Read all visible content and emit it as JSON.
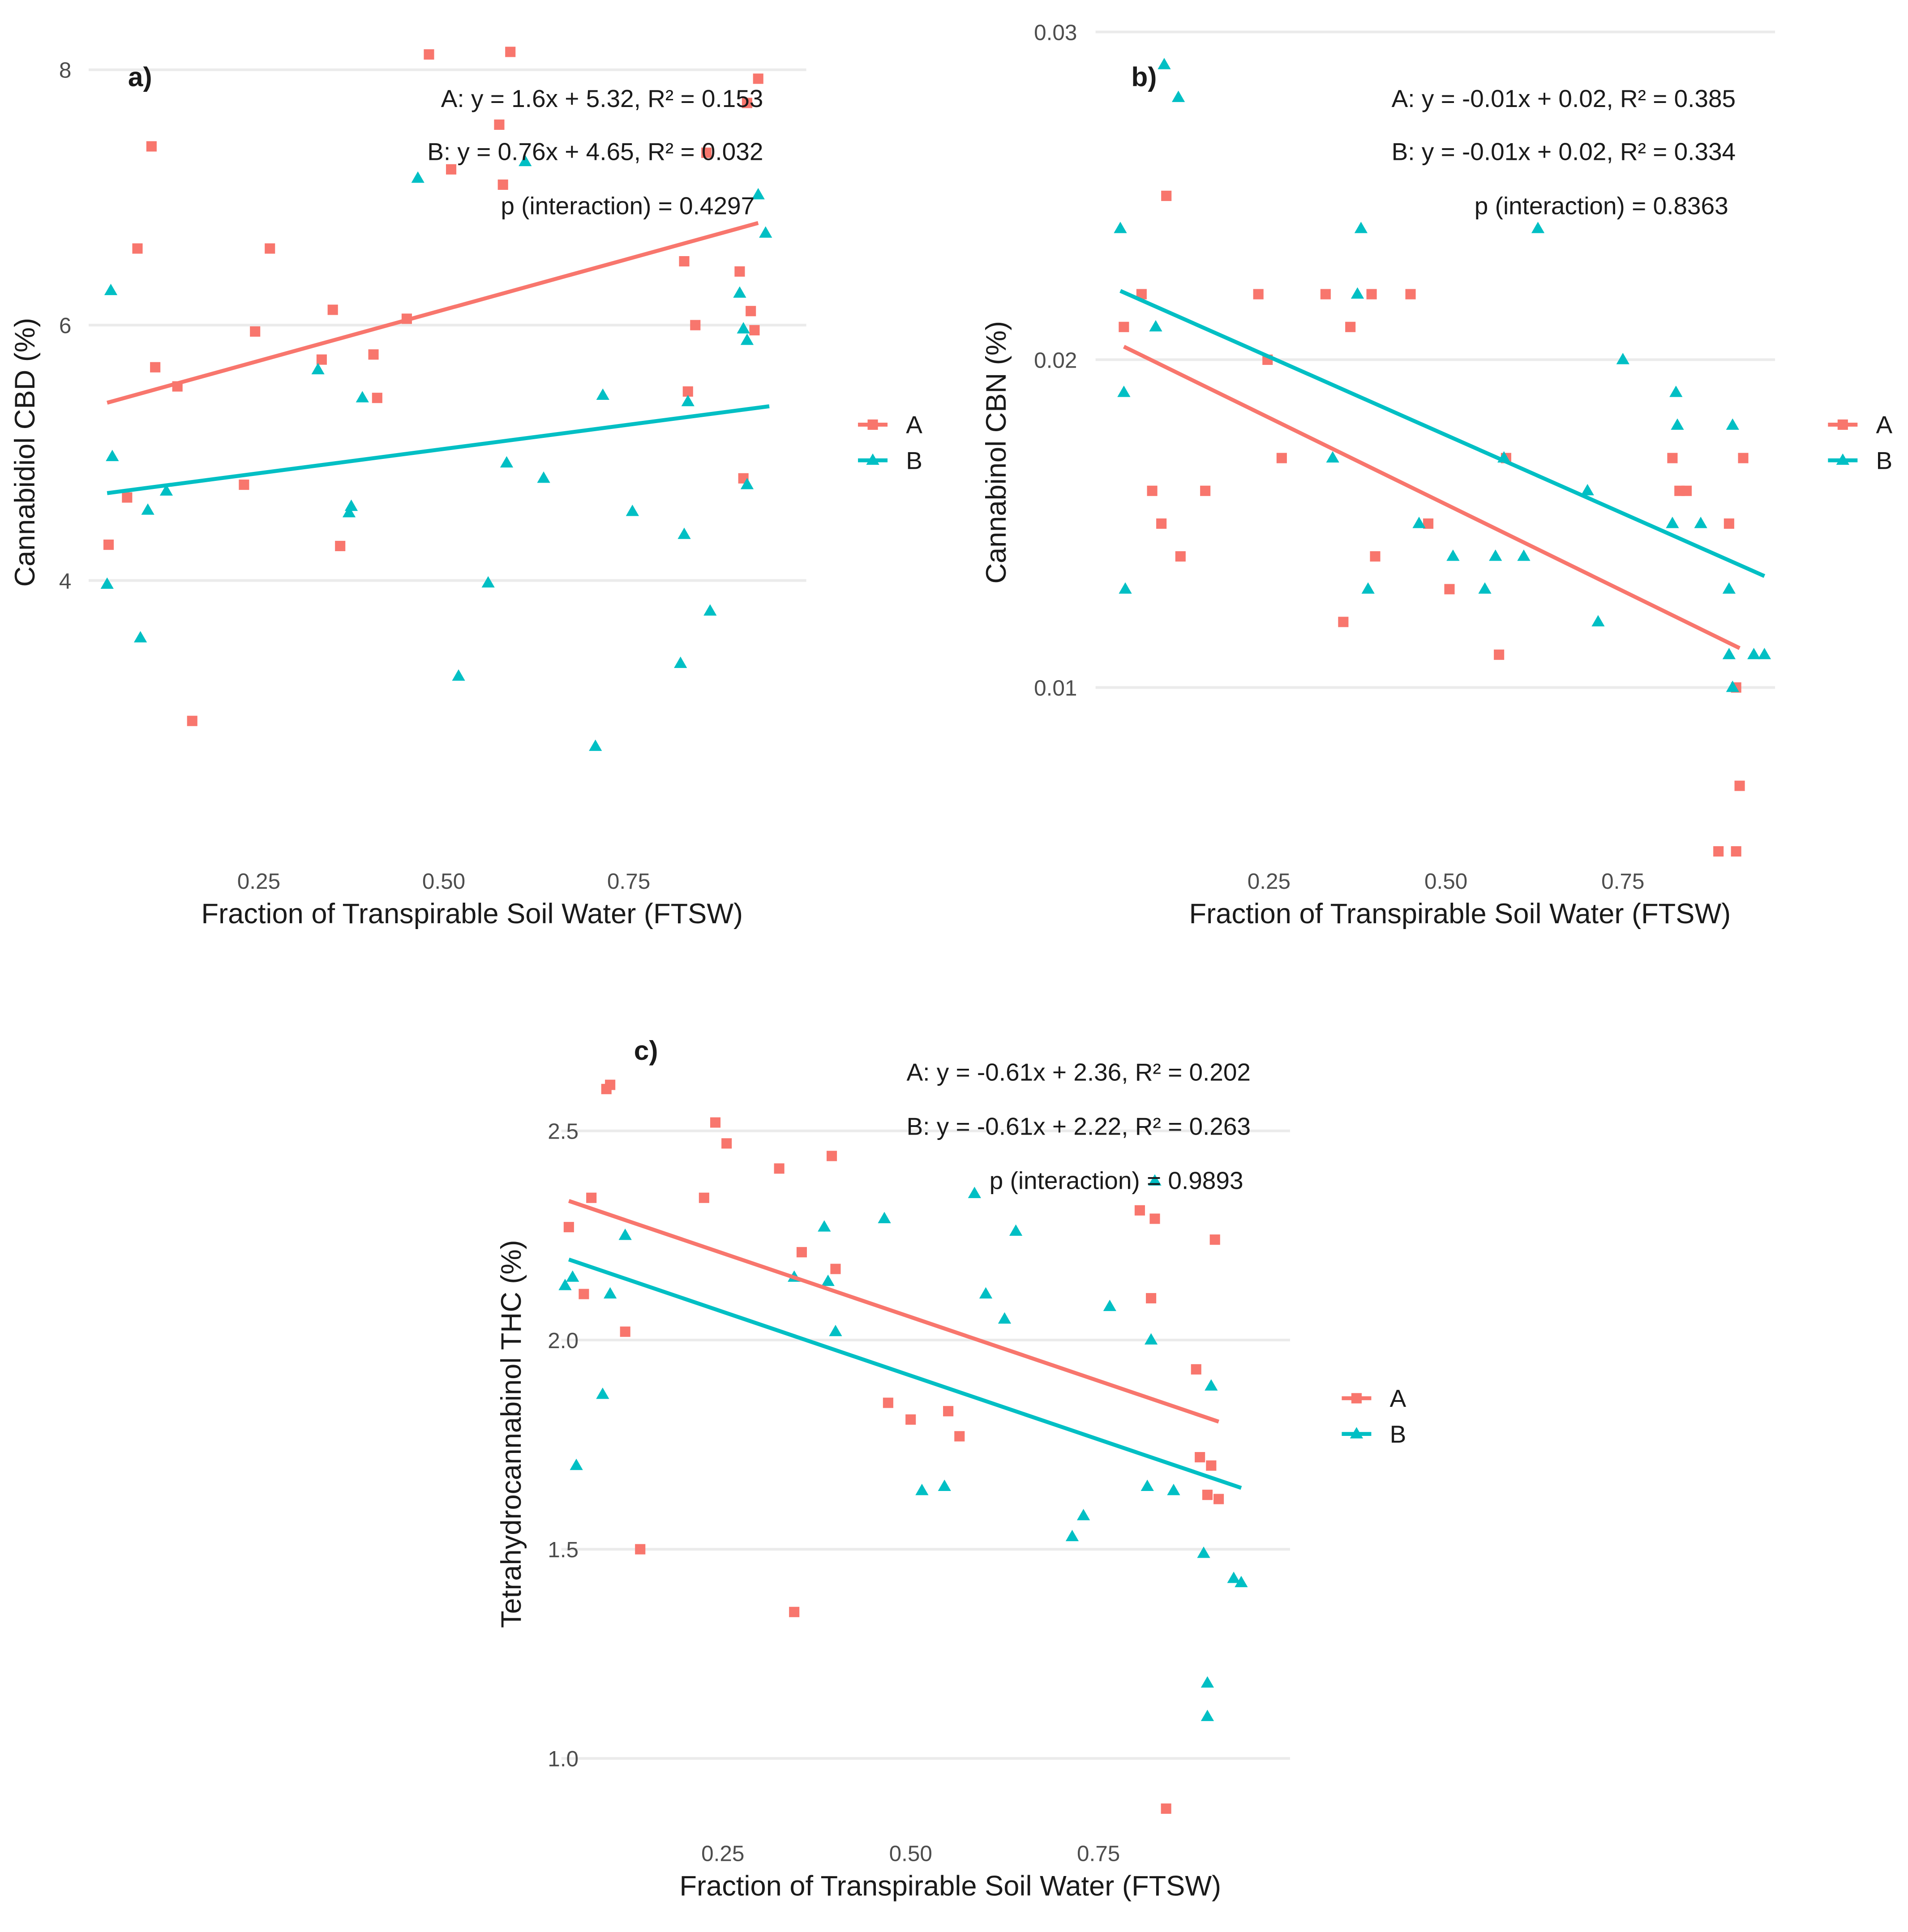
{
  "colors": {
    "A": "#F8766D",
    "B": "#00BFC4",
    "grid": "#EBEBEB",
    "text": "#1A1A1A",
    "tick": "#4D4D4D"
  },
  "chart_data": [
    {
      "type": "scatter",
      "panel": "a)",
      "xlabel": "Fraction of Transpirable Soil Water (FTSW)",
      "ylabel": "Cannabidiol CBD (%)",
      "xlim": [
        0.02,
        0.99
      ],
      "ylim": [
        1.75,
        8.45
      ],
      "xticks": [
        0.25,
        0.5,
        0.75
      ],
      "xtick_labels": [
        "0.25",
        "0.50",
        "0.75"
      ],
      "yticks": [
        4,
        6,
        8
      ],
      "ytick_labels": [
        "4",
        "6",
        "8"
      ],
      "annotations": [
        "A: y = 1.6x + 5.32, R² = 0.153",
        "B: y = 0.76x + 4.65, R² = 0.032",
        "p (interaction) = 0.4297"
      ],
      "legend": [
        "A",
        "B"
      ],
      "legend_position": "right",
      "series": [
        {
          "name": "A",
          "marker": "square",
          "x": [
            0.047,
            0.072,
            0.086,
            0.105,
            0.11,
            0.14,
            0.16,
            0.23,
            0.245,
            0.265,
            0.335,
            0.35,
            0.36,
            0.405,
            0.41,
            0.45,
            0.48,
            0.51,
            0.575,
            0.58,
            0.59,
            0.825,
            0.83,
            0.84,
            0.855,
            0.9,
            0.905,
            0.91,
            0.915,
            0.92,
            0.925
          ],
          "y": [
            4.28,
            4.65,
            6.6,
            7.4,
            5.67,
            5.52,
            2.9,
            4.75,
            5.95,
            6.6,
            5.73,
            6.12,
            4.27,
            5.77,
            5.43,
            6.05,
            8.12,
            7.22,
            7.57,
            7.1,
            8.14,
            6.5,
            5.48,
            6.0,
            7.35,
            6.42,
            4.8,
            7.74,
            6.11,
            5.96,
            7.93
          ]
        },
        {
          "name": "B",
          "marker": "triangle",
          "x": [
            0.045,
            0.05,
            0.052,
            0.09,
            0.1,
            0.125,
            0.33,
            0.372,
            0.375,
            0.39,
            0.465,
            0.52,
            0.56,
            0.585,
            0.61,
            0.635,
            0.705,
            0.715,
            0.755,
            0.82,
            0.825,
            0.83,
            0.86,
            0.9,
            0.905,
            0.91,
            0.91,
            0.925,
            0.935
          ],
          "y": [
            3.97,
            6.27,
            4.97,
            3.55,
            4.55,
            4.7,
            5.65,
            4.53,
            4.58,
            5.43,
            7.15,
            3.25,
            3.98,
            4.92,
            7.28,
            4.8,
            2.7,
            5.45,
            4.54,
            3.35,
            4.36,
            5.4,
            3.76,
            6.25,
            5.97,
            5.88,
            4.75,
            7.02,
            6.72
          ]
        }
      ],
      "fits": [
        {
          "name": "A",
          "slope": 1.6,
          "intercept": 5.32,
          "x_range": [
            0.045,
            0.925
          ]
        },
        {
          "name": "B",
          "slope": 0.76,
          "intercept": 4.65,
          "x_range": [
            0.045,
            0.94
          ]
        }
      ]
    },
    {
      "type": "scatter",
      "panel": "b)",
      "xlabel": "Fraction of Transpirable Soil Water (FTSW)",
      "ylabel": "Cannabinol CBN (%)",
      "xlim": [
        0.005,
        0.965
      ],
      "ylim": [
        0.0045,
        0.0306
      ],
      "xticks": [
        0.25,
        0.5,
        0.75
      ],
      "xtick_labels": [
        "0.25",
        "0.50",
        "0.75"
      ],
      "yticks": [
        0.01,
        0.02,
        0.03
      ],
      "ytick_labels": [
        "0.01",
        "0.02",
        "0.03"
      ],
      "annotations": [
        "A: y = -0.01x + 0.02, R² = 0.385",
        "B: y = -0.01x + 0.02, R² = 0.334",
        "p (interaction) = 0.8363"
      ],
      "legend": [
        "A",
        "B"
      ],
      "legend_position": "right",
      "series": [
        {
          "name": "A",
          "marker": "square",
          "x": [
            0.045,
            0.07,
            0.085,
            0.098,
            0.105,
            0.125,
            0.16,
            0.235,
            0.248,
            0.268,
            0.33,
            0.355,
            0.365,
            0.395,
            0.4,
            0.45,
            0.475,
            0.505,
            0.575,
            0.585,
            0.82,
            0.83,
            0.84,
            0.885,
            0.9,
            0.91,
            0.91,
            0.915,
            0.92
          ],
          "y": [
            0.021,
            0.022,
            0.016,
            0.015,
            0.025,
            0.014,
            0.016,
            0.022,
            0.02,
            0.017,
            0.022,
            0.012,
            0.021,
            0.022,
            0.014,
            0.022,
            0.015,
            0.013,
            0.011,
            0.017,
            0.017,
            0.016,
            0.016,
            0.005,
            0.015,
            0.005,
            0.01,
            0.007,
            0.017
          ]
        },
        {
          "name": "B",
          "marker": "triangle",
          "x": [
            0.04,
            0.045,
            0.047,
            0.09,
            0.102,
            0.122,
            0.34,
            0.375,
            0.38,
            0.39,
            0.462,
            0.51,
            0.555,
            0.57,
            0.582,
            0.61,
            0.63,
            0.7,
            0.715,
            0.75,
            0.82,
            0.825,
            0.827,
            0.86,
            0.9,
            0.9,
            0.905,
            0.905,
            0.935,
            0.95
          ],
          "y": [
            0.024,
            0.019,
            0.013,
            0.021,
            0.029,
            0.028,
            0.017,
            0.022,
            0.024,
            0.013,
            0.015,
            0.014,
            0.013,
            0.014,
            0.017,
            0.014,
            0.024,
            0.016,
            0.012,
            0.02,
            0.015,
            0.019,
            0.018,
            0.015,
            0.013,
            0.011,
            0.01,
            0.018,
            0.011,
            0.011
          ]
        }
      ],
      "fits": [
        {
          "name": "A",
          "x0": 0.045,
          "y0": 0.0204,
          "x1": 0.915,
          "y1": 0.0112
        },
        {
          "name": "B",
          "x0": 0.04,
          "y0": 0.0221,
          "x1": 0.95,
          "y1": 0.0134
        }
      ]
    },
    {
      "type": "scatter",
      "panel": "c)",
      "xlabel": "Fraction of Transpirable Soil Water (FTSW)",
      "ylabel": "Tetrahydrocannabinol THC (%)",
      "xlim": [
        0.035,
        1.005
      ],
      "ylim": [
        0.79,
        2.82
      ],
      "xticks": [
        0.25,
        0.5,
        0.75
      ],
      "xtick_labels": [
        "0.25",
        "0.50",
        "0.75"
      ],
      "yticks": [
        1.0,
        1.5,
        2.0,
        2.5
      ],
      "ytick_labels": [
        "1.0",
        "1.5",
        "2.0",
        "2.5"
      ],
      "annotations": [
        "A: y = -0.61x + 2.36, R² = 0.202",
        "B: y = -0.61x + 2.22, R² = 0.263",
        "p (interaction) = 0.9893"
      ],
      "legend": [
        "A",
        "B"
      ],
      "legend_position": "right",
      "series": [
        {
          "name": "A",
          "marker": "square",
          "x": [
            0.045,
            0.065,
            0.075,
            0.095,
            0.1,
            0.12,
            0.14,
            0.225,
            0.24,
            0.255,
            0.325,
            0.345,
            0.355,
            0.395,
            0.4,
            0.47,
            0.5,
            0.55,
            0.565,
            0.805,
            0.82,
            0.825,
            0.84,
            0.88,
            0.885,
            0.895,
            0.9,
            0.905,
            0.91
          ],
          "y": [
            2.27,
            2.11,
            2.34,
            2.6,
            2.61,
            2.02,
            1.5,
            2.34,
            2.52,
            2.47,
            2.41,
            1.35,
            2.21,
            2.44,
            2.17,
            1.85,
            1.81,
            1.83,
            1.77,
            2.31,
            2.1,
            2.29,
            0.88,
            1.93,
            1.72,
            1.63,
            1.7,
            2.24,
            1.62
          ]
        },
        {
          "name": "B",
          "marker": "triangle",
          "x": [
            0.04,
            0.05,
            0.055,
            0.09,
            0.1,
            0.12,
            0.345,
            0.385,
            0.39,
            0.4,
            0.465,
            0.515,
            0.545,
            0.585,
            0.6,
            0.625,
            0.64,
            0.715,
            0.73,
            0.765,
            0.815,
            0.82,
            0.825,
            0.85,
            0.89,
            0.895,
            0.895,
            0.9,
            0.93,
            0.94
          ],
          "y": [
            2.13,
            2.15,
            1.7,
            1.87,
            2.11,
            2.25,
            2.15,
            2.27,
            2.14,
            2.02,
            2.29,
            1.64,
            1.65,
            2.35,
            2.11,
            2.05,
            2.26,
            1.53,
            1.58,
            2.08,
            1.65,
            2.0,
            2.38,
            1.64,
            1.49,
            1.18,
            1.1,
            1.89,
            1.43,
            1.42
          ]
        }
      ],
      "fits": [
        {
          "name": "A",
          "slope": -0.61,
          "intercept": 2.36,
          "x_range": [
            0.045,
            0.91
          ]
        },
        {
          "name": "B",
          "slope": -0.61,
          "intercept": 2.22,
          "x_range": [
            0.045,
            0.94
          ]
        }
      ]
    }
  ]
}
